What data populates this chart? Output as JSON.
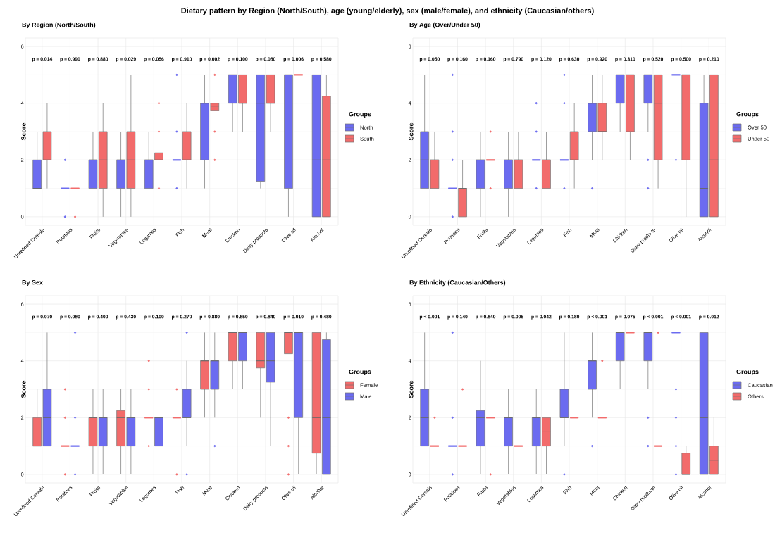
{
  "chart_data": [
    {
      "type": "box",
      "title": "Dietary pattern by Region (North/South), age (young/elderly), sex (male/female), and ethnicity (Caucasian/others)",
      "subtitle": "By Region (North/South)",
      "ylabel": "Score",
      "legend_title": "Groups",
      "legend": "right",
      "grid": true,
      "ylim": [
        -0.3,
        6.3
      ],
      "yticks": [
        0,
        2,
        4,
        6
      ],
      "categories": [
        "Unrefined Cereals",
        "Potatoes",
        "Fruits",
        "Vegetables",
        "Legumes",
        "Fish",
        "Meat",
        "Chicken",
        "Dairy products",
        "Olive oil",
        "Alcohol"
      ],
      "annotations": [
        "p = 0.014",
        "p = 0.990",
        "p = 0.880",
        "p = 0.029",
        "p = 0.056",
        "p = 0.910",
        "p = 0.002",
        "p = 0.100",
        "p = 0.080",
        "p = 0.006",
        "p = 0.580"
      ],
      "series": [
        {
          "name": "North",
          "color": "#6b6bf0",
          "boxes": [
            {
              "low": 1,
              "q1": 1,
              "median": 1,
              "q3": 2,
              "high": 3
            },
            {
              "low": 1,
              "q1": 1,
              "median": 1,
              "q3": 1,
              "high": 1,
              "outliers": [
                0,
                2
              ]
            },
            {
              "low": 1,
              "q1": 1,
              "median": 2,
              "q3": 2,
              "high": 3
            },
            {
              "low": 0,
              "q1": 1,
              "median": 2,
              "q3": 2,
              "high": 3
            },
            {
              "low": 1,
              "q1": 1,
              "median": 2,
              "q3": 2,
              "high": 3
            },
            {
              "low": 2,
              "q1": 2,
              "median": 2,
              "q3": 2,
              "high": 2,
              "outliers": [
                1,
                3,
                5
              ]
            },
            {
              "low": 1,
              "q1": 2,
              "median": 4,
              "q3": 4,
              "high": 5
            },
            {
              "low": 3,
              "q1": 4,
              "median": 5,
              "q3": 5,
              "high": 5
            },
            {
              "low": 1,
              "q1": 1.25,
              "median": 4,
              "q3": 5,
              "high": 5
            },
            {
              "low": 0,
              "q1": 1,
              "median": 5,
              "q3": 5,
              "high": 5
            },
            {
              "low": 0,
              "q1": 0,
              "median": 2,
              "q3": 5,
              "high": 5
            }
          ]
        },
        {
          "name": "South",
          "color": "#f26b6b",
          "boxes": [
            {
              "low": 1,
              "q1": 2,
              "median": 2,
              "q3": 3,
              "high": 4
            },
            {
              "low": 1,
              "q1": 1,
              "median": 1,
              "q3": 1,
              "high": 1,
              "outliers": [
                0
              ]
            },
            {
              "low": 0,
              "q1": 1,
              "median": 2,
              "q3": 3,
              "high": 4
            },
            {
              "low": 0,
              "q1": 1,
              "median": 2,
              "q3": 3,
              "high": 5
            },
            {
              "low": 2,
              "q1": 2,
              "median": 2,
              "q3": 2.25,
              "high": 2.25,
              "outliers": [
                1,
                3,
                4
              ]
            },
            {
              "low": 1,
              "q1": 2,
              "median": 2,
              "q3": 3,
              "high": 4
            },
            {
              "low": 3.75,
              "q1": 3.75,
              "median": 3.9,
              "q3": 4,
              "high": 4,
              "outliers": [
                2,
                3,
                5
              ]
            },
            {
              "low": 3,
              "q1": 4,
              "median": 4,
              "q3": 5,
              "high": 5
            },
            {
              "low": 3,
              "q1": 4,
              "median": 4,
              "q3": 5,
              "high": 5
            },
            {
              "low": 5,
              "q1": 5,
              "median": 5,
              "q3": 5,
              "high": 5
            },
            {
              "low": 0,
              "q1": 0,
              "median": 2,
              "q3": 4.25,
              "high": 5
            }
          ]
        }
      ]
    },
    {
      "type": "box",
      "subtitle": "By Age (Over/Under 50)",
      "ylabel": "Score",
      "legend_title": "Groups",
      "legend": "right",
      "grid": true,
      "ylim": [
        -0.3,
        6.3
      ],
      "yticks": [
        0,
        2,
        4,
        6
      ],
      "categories": [
        "Unrefined Cereals",
        "Potatoes",
        "Fruits",
        "Vegetables",
        "Legumes",
        "Fish",
        "Meat",
        "Chicken",
        "Dairy products",
        "Olive oil",
        "Alcohol"
      ],
      "annotations": [
        "p = 0.050",
        "p = 0.160",
        "p = 0.160",
        "p = 0.790",
        "p = 0.120",
        "p = 0.630",
        "p = 0.920",
        "p = 0.310",
        "p = 0.520",
        "p = 0.500",
        "p = 0.210"
      ],
      "series": [
        {
          "name": "Over 50",
          "color": "#6b6bf0",
          "boxes": [
            {
              "low": 1,
              "q1": 1,
              "median": 2,
              "q3": 3,
              "high": 5
            },
            {
              "low": 1,
              "q1": 1,
              "median": 1,
              "q3": 1,
              "high": 1,
              "outliers": [
                0,
                2,
                3,
                5
              ]
            },
            {
              "low": 0,
              "q1": 1,
              "median": 2,
              "q3": 2,
              "high": 3
            },
            {
              "low": 0,
              "q1": 1,
              "median": 2,
              "q3": 2,
              "high": 3
            },
            {
              "low": 2,
              "q1": 2,
              "median": 2,
              "q3": 2,
              "high": 2,
              "outliers": [
                1,
                3,
                4
              ]
            },
            {
              "low": 2,
              "q1": 2,
              "median": 2,
              "q3": 2,
              "high": 2,
              "outliers": [
                1,
                4,
                5
              ]
            },
            {
              "low": 2,
              "q1": 3,
              "median": 4,
              "q3": 4,
              "high": 5,
              "outliers": [
                1
              ]
            },
            {
              "low": 3,
              "q1": 4,
              "median": 5,
              "q3": 5,
              "high": 5
            },
            {
              "low": 3,
              "q1": 4,
              "median": 5,
              "q3": 5,
              "high": 5,
              "outliers": [
                1,
                2
              ]
            },
            {
              "low": 5,
              "q1": 5,
              "median": 5,
              "q3": 5,
              "high": 5,
              "outliers": [
                2
              ]
            },
            {
              "low": 0,
              "q1": 0,
              "median": 1,
              "q3": 4,
              "high": 5
            }
          ]
        },
        {
          "name": "Under 50",
          "color": "#f26b6b",
          "boxes": [
            {
              "low": 1,
              "q1": 1,
              "median": 2,
              "q3": 2,
              "high": 3
            },
            {
              "low": 0,
              "q1": 0,
              "median": 1,
              "q3": 1,
              "high": 2
            },
            {
              "low": 2,
              "q1": 2,
              "median": 2,
              "q3": 2,
              "high": 2,
              "outliers": [
                1,
                3
              ]
            },
            {
              "low": 1,
              "q1": 1,
              "median": 2,
              "q3": 2,
              "high": 3
            },
            {
              "low": 1,
              "q1": 1,
              "median": 2,
              "q3": 2,
              "high": 3
            },
            {
              "low": 1,
              "q1": 2,
              "median": 2,
              "q3": 3,
              "high": 4
            },
            {
              "low": 2,
              "q1": 3,
              "median": 3,
              "q3": 4,
              "high": 5
            },
            {
              "low": 2,
              "q1": 3,
              "median": 5,
              "q3": 5,
              "high": 5
            },
            {
              "low": 1,
              "q1": 2,
              "median": 4,
              "q3": 5,
              "high": 5
            },
            {
              "low": 0,
              "q1": 2,
              "median": 5,
              "q3": 5,
              "high": 5
            },
            {
              "low": 0,
              "q1": 0,
              "median": 2,
              "q3": 5,
              "high": 5
            }
          ]
        }
      ]
    },
    {
      "type": "box",
      "subtitle": "By Sex",
      "ylabel": "Score",
      "legend_title": "Groups",
      "legend": "right",
      "grid": true,
      "ylim": [
        -0.3,
        6.3
      ],
      "yticks": [
        0,
        2,
        4,
        6
      ],
      "categories": [
        "Unrefined Cereals",
        "Potatoes",
        "Fruits",
        "Vegetables",
        "Legumes",
        "Fish",
        "Meat",
        "Chicken",
        "Dairy products",
        "Olive oil",
        "Alcohol"
      ],
      "annotations": [
        "p = 0.070",
        "p = 0.080",
        "p = 0.400",
        "p = 0.430",
        "p = 0.100",
        "p = 0.270",
        "p = 0.880",
        "p = 0.850",
        "p = 0.840",
        "p = 0.010",
        "p = 0.480"
      ],
      "series": [
        {
          "name": "Female",
          "color": "#f26b6b",
          "boxes": [
            {
              "low": 1,
              "q1": 1,
              "median": 1,
              "q3": 2,
              "high": 3
            },
            {
              "low": 1,
              "q1": 1,
              "median": 1,
              "q3": 1,
              "high": 1,
              "outliers": [
                0,
                2,
                3
              ]
            },
            {
              "low": 0,
              "q1": 1,
              "median": 2,
              "q3": 2,
              "high": 3
            },
            {
              "low": 0,
              "q1": 1,
              "median": 2,
              "q3": 2.25,
              "high": 3
            },
            {
              "low": 2,
              "q1": 2,
              "median": 2,
              "q3": 2,
              "high": 2,
              "outliers": [
                1,
                3,
                4
              ]
            },
            {
              "low": 2,
              "q1": 2,
              "median": 2,
              "q3": 2,
              "high": 2,
              "outliers": [
                0,
                3
              ]
            },
            {
              "low": 2,
              "q1": 3,
              "median": 4,
              "q3": 4,
              "high": 5
            },
            {
              "low": 3,
              "q1": 4,
              "median": 5,
              "q3": 5,
              "high": 5
            },
            {
              "low": 2,
              "q1": 3.75,
              "median": 4,
              "q3": 5,
              "high": 5
            },
            {
              "low": 4.25,
              "q1": 4.25,
              "median": 5,
              "q3": 5,
              "high": 5,
              "outliers": [
                0,
                1,
                2
              ]
            },
            {
              "low": 0,
              "q1": 0.75,
              "median": 2,
              "q3": 5,
              "high": 5
            }
          ]
        },
        {
          "name": "Male",
          "color": "#6b6bf0",
          "boxes": [
            {
              "low": 1,
              "q1": 1,
              "median": 2,
              "q3": 3,
              "high": 5
            },
            {
              "low": 1,
              "q1": 1,
              "median": 1,
              "q3": 1,
              "high": 1,
              "outliers": [
                0,
                2,
                5
              ]
            },
            {
              "low": 0,
              "q1": 1,
              "median": 2,
              "q3": 2,
              "high": 3
            },
            {
              "low": 0,
              "q1": 1,
              "median": 2,
              "q3": 2,
              "high": 3
            },
            {
              "low": 0,
              "q1": 1,
              "median": 2,
              "q3": 2,
              "high": 3
            },
            {
              "low": 1,
              "q1": 2,
              "median": 2,
              "q3": 3,
              "high": 4,
              "outliers": [
                0,
                5
              ]
            },
            {
              "low": 2,
              "q1": 3,
              "median": 4,
              "q3": 4,
              "high": 5,
              "outliers": [
                1
              ]
            },
            {
              "low": 3,
              "q1": 4,
              "median": 5,
              "q3": 5,
              "high": 5
            },
            {
              "low": 1,
              "q1": 3.25,
              "median": 4,
              "q3": 5,
              "high": 5
            },
            {
              "low": 0,
              "q1": 2,
              "median": 5,
              "q3": 5,
              "high": 5
            },
            {
              "low": 0,
              "q1": 0,
              "median": 2,
              "q3": 4.75,
              "high": 5
            }
          ]
        }
      ]
    },
    {
      "type": "box",
      "subtitle": "By Ethnicity (Caucasian/Others)",
      "ylabel": "Score",
      "legend_title": "Groups",
      "legend": "right",
      "grid": true,
      "ylim": [
        -0.3,
        6.3
      ],
      "yticks": [
        0,
        2,
        4,
        6
      ],
      "categories": [
        "Unrefined Cereals",
        "Potatoes",
        "Fruits",
        "Vegetables",
        "Legumes",
        "Fish",
        "Meat",
        "Chicken",
        "Dairy products",
        "Olive oil",
        "Alcohol"
      ],
      "annotations": [
        "p < 0.001",
        "p = 0.140",
        "p = 0.840",
        "p = 0.005",
        "p = 0.042",
        "p = 0.180",
        "p < 0.001",
        "p = 0.075",
        "p < 0.001",
        "p < 0.001",
        "p = 0.012"
      ],
      "series": [
        {
          "name": "Caucasian",
          "color": "#6b6bf0",
          "boxes": [
            {
              "low": 1,
              "q1": 1,
              "median": 2,
              "q3": 3,
              "high": 5
            },
            {
              "low": 1,
              "q1": 1,
              "median": 1,
              "q3": 1,
              "high": 1,
              "outliers": [
                0,
                2,
                5
              ]
            },
            {
              "low": 0,
              "q1": 1,
              "median": 2,
              "q3": 2.25,
              "high": 4
            },
            {
              "low": 0,
              "q1": 1,
              "median": 2,
              "q3": 2,
              "high": 3
            },
            {
              "low": 0,
              "q1": 1,
              "median": 2,
              "q3": 2,
              "high": 3
            },
            {
              "low": 1,
              "q1": 2,
              "median": 2,
              "q3": 3,
              "high": 5,
              "outliers": [
                0
              ]
            },
            {
              "low": 2,
              "q1": 3,
              "median": 4,
              "q3": 4,
              "high": 5,
              "outliers": [
                1
              ]
            },
            {
              "low": 3,
              "q1": 4,
              "median": 5,
              "q3": 5,
              "high": 5
            },
            {
              "low": 3,
              "q1": 4,
              "median": 5,
              "q3": 5,
              "high": 5,
              "outliers": [
                1,
                2
              ]
            },
            {
              "low": 5,
              "q1": 5,
              "median": 5,
              "q3": 5,
              "high": 5,
              "outliers": [
                0,
                1,
                2,
                3
              ]
            },
            {
              "low": 0,
              "q1": 0,
              "median": 2,
              "q3": 5,
              "high": 5
            }
          ]
        },
        {
          "name": "Others",
          "color": "#f26b6b",
          "boxes": [
            {
              "low": 1,
              "q1": 1,
              "median": 1,
              "q3": 1,
              "high": 1,
              "outliers": [
                2
              ]
            },
            {
              "low": 1,
              "q1": 1,
              "median": 1,
              "q3": 1,
              "high": 1,
              "outliers": [
                3
              ]
            },
            {
              "low": 2,
              "q1": 2,
              "median": 2,
              "q3": 2,
              "high": 2,
              "outliers": [
                0
              ]
            },
            {
              "low": 1,
              "q1": 1,
              "median": 1,
              "q3": 1,
              "high": 1
            },
            {
              "low": 0,
              "q1": 1,
              "median": 1.5,
              "q3": 2,
              "high": 2
            },
            {
              "low": 2,
              "q1": 2,
              "median": 2,
              "q3": 2,
              "high": 2
            },
            {
              "low": 2,
              "q1": 2,
              "median": 2,
              "q3": 2,
              "high": 2,
              "outliers": [
                4
              ]
            },
            {
              "low": 5,
              "q1": 5,
              "median": 5,
              "q3": 5,
              "high": 5
            },
            {
              "low": 1,
              "q1": 1,
              "median": 1,
              "q3": 1,
              "high": 1,
              "outliers": [
                5
              ]
            },
            {
              "low": 0,
              "q1": 0,
              "median": 0,
              "q3": 0.75,
              "high": 1
            },
            {
              "low": 0,
              "q1": 0,
              "median": 0.5,
              "q3": 1,
              "high": 2
            }
          ]
        }
      ]
    }
  ]
}
